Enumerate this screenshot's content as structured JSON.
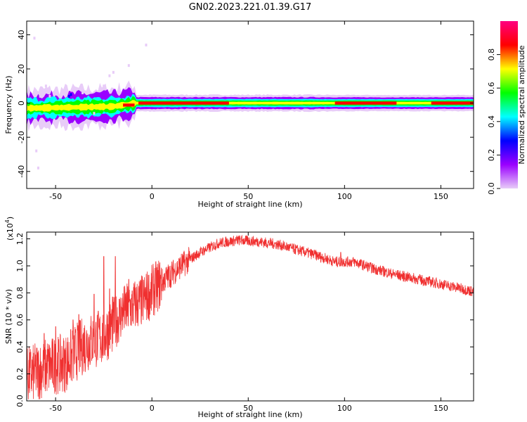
{
  "title": "GN02.2023.221.01.39.G17",
  "chart_data": [
    {
      "type": "heatmap",
      "xlabel": "Height of straight line (km)",
      "ylabel": "Frequency (Hz)",
      "xlim": [
        -65,
        167
      ],
      "ylim": [
        -50,
        48
      ],
      "xticks": [
        -50,
        0,
        50,
        100,
        150
      ],
      "yticks": [
        40,
        20,
        0,
        -20,
        -40
      ],
      "colorbar": {
        "label": "Normalized spectral amplitude",
        "range": [
          0,
          1
        ],
        "ticks": [
          "0.0",
          "0.2",
          "0.4",
          "0.6",
          "0.8"
        ],
        "colors": [
          "#e8ccf8",
          "#9a00ff",
          "#0000ff",
          "#00ffff",
          "#00ff00",
          "#ffff00",
          "#ff0000",
          "#ff0080"
        ]
      },
      "band": {
        "center_hz": [
          {
            "x": -65,
            "y": -3
          },
          {
            "x": -20,
            "y": -2
          },
          {
            "x": -8,
            "y": 0
          },
          {
            "x": 167,
            "y": 0
          }
        ],
        "peak_segments": [
          [
            -15,
            -9
          ],
          [
            -7,
            40
          ],
          [
            95,
            127
          ],
          [
            145,
            167
          ]
        ]
      },
      "series_name": ""
    },
    {
      "type": "line",
      "xlabel": "Height of straight line (km)",
      "ylabel": "SNR (10 * v/v)",
      "y_multiplier": "(x10",
      "y_exponent": "4",
      "xlim": [
        -65,
        167
      ],
      "ylim": [
        0,
        1.25
      ],
      "xticks": [
        -50,
        0,
        50,
        100,
        150
      ],
      "yticks": [
        "0.0",
        "0.2",
        "0.4",
        "0.6",
        "0.8",
        "1.0",
        "1.2"
      ],
      "color": "#f03030",
      "envelope": [
        {
          "x": -65,
          "y": 0.18
        },
        {
          "x": -55,
          "y": 0.25
        },
        {
          "x": -45,
          "y": 0.28
        },
        {
          "x": -35,
          "y": 0.42
        },
        {
          "x": -25,
          "y": 0.48
        },
        {
          "x": -15,
          "y": 0.66
        },
        {
          "x": -5,
          "y": 0.74
        },
        {
          "x": 5,
          "y": 0.88
        },
        {
          "x": 15,
          "y": 1.0
        },
        {
          "x": 25,
          "y": 1.1
        },
        {
          "x": 35,
          "y": 1.17
        },
        {
          "x": 45,
          "y": 1.19
        },
        {
          "x": 55,
          "y": 1.18
        },
        {
          "x": 65,
          "y": 1.16
        },
        {
          "x": 75,
          "y": 1.12
        },
        {
          "x": 85,
          "y": 1.08
        },
        {
          "x": 95,
          "y": 1.03
        },
        {
          "x": 105,
          "y": 1.03
        },
        {
          "x": 115,
          "y": 0.98
        },
        {
          "x": 125,
          "y": 0.94
        },
        {
          "x": 135,
          "y": 0.91
        },
        {
          "x": 145,
          "y": 0.88
        },
        {
          "x": 155,
          "y": 0.85
        },
        {
          "x": 167,
          "y": 0.81
        }
      ],
      "spikes": [
        {
          "x": -56,
          "y": 0.5
        },
        {
          "x": -50,
          "y": 0.55
        },
        {
          "x": -41,
          "y": 0.6
        },
        {
          "x": -38,
          "y": 0.64
        },
        {
          "x": -30,
          "y": 0.79
        },
        {
          "x": -25,
          "y": 1.07
        },
        {
          "x": -22,
          "y": 0.83
        },
        {
          "x": -19,
          "y": 1.07
        },
        {
          "x": -12,
          "y": 0.9
        },
        {
          "x": 98,
          "y": 1.1
        }
      ]
    }
  ]
}
